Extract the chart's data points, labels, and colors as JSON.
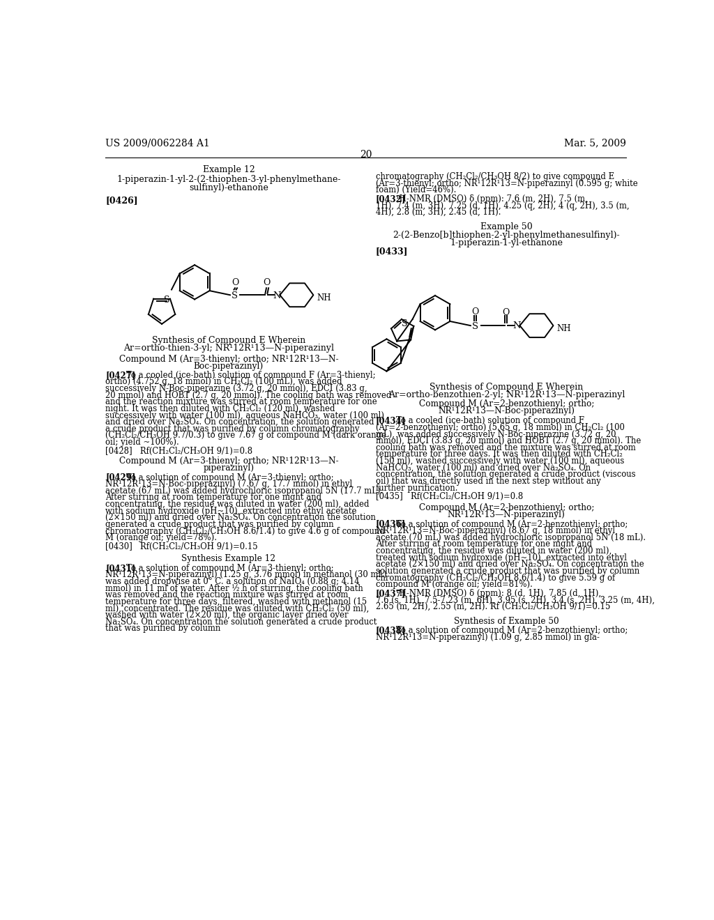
{
  "background_color": "#ffffff",
  "page_number": "20",
  "header_left": "US 2009/0062284 A1",
  "header_right": "Mar. 5, 2009"
}
